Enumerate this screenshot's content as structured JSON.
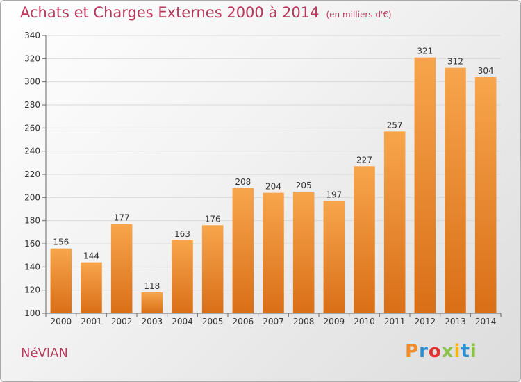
{
  "title": "Achats et Charges Externes 2000 à 2014",
  "subtitle": "(en milliers d'€)",
  "commune": "NéVIAN",
  "logo": {
    "text": "Proxiti",
    "letter_colors": [
      "#f28c28",
      "#2a8fd4",
      "#e0332f",
      "#8bc34a",
      "#f2b51d",
      "#2a8fd4",
      "#8bc34a"
    ]
  },
  "colors": {
    "bar_light": "#f7a54c",
    "bar_dark": "#d96f17",
    "title": "#b8375b",
    "grid": "#d9d9d9"
  },
  "chart_data": {
    "type": "bar",
    "title": "Achats et Charges Externes 2000 à 2014",
    "subtitle": "(en milliers d'€)",
    "categories": [
      "2000",
      "2001",
      "2002",
      "2003",
      "2004",
      "2005",
      "2006",
      "2007",
      "2008",
      "2009",
      "2010",
      "2011",
      "2012",
      "2013",
      "2014"
    ],
    "values": [
      156,
      144,
      177,
      118,
      163,
      176,
      208,
      204,
      205,
      197,
      227,
      257,
      321,
      312,
      304
    ],
    "ylim": [
      100,
      340
    ],
    "yticks": [
      100,
      120,
      140,
      160,
      180,
      200,
      220,
      240,
      260,
      280,
      300,
      320,
      340
    ],
    "grid": true,
    "data_labels": true
  }
}
